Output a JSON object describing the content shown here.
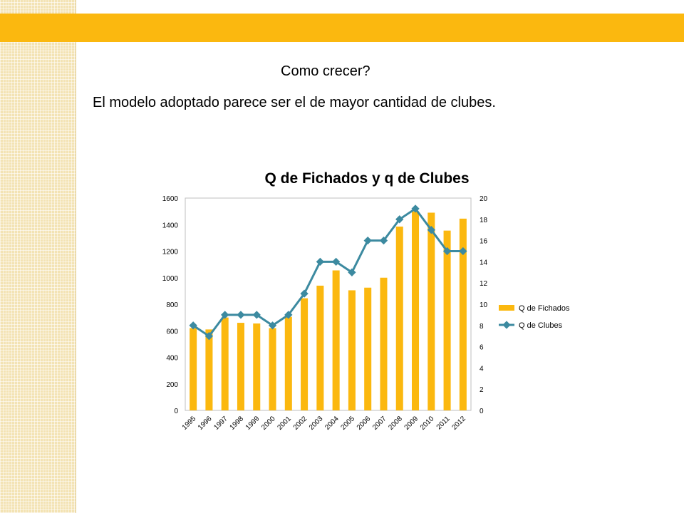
{
  "slide": {
    "line1": "Como crecer?",
    "line2": "El modelo adoptado parece ser el de mayor cantidad de clubes."
  },
  "colors": {
    "banner": "#fbb80f",
    "side_strip": "#f3e3b4",
    "bars": "#fbb80f",
    "line": "#3c8aa0"
  },
  "chart_data": {
    "type": "bar",
    "title": "Q de Fichados y q de Clubes",
    "categories": [
      "1995",
      "1996",
      "1997",
      "1998",
      "1999",
      "2000",
      "2001",
      "2002",
      "2003",
      "2004",
      "2005",
      "2006",
      "2007",
      "2008",
      "2009",
      "2010",
      "2011",
      "2012"
    ],
    "series": [
      {
        "name": "Q de Fichados",
        "type": "bar",
        "axis": "left",
        "values": [
          620,
          610,
          700,
          660,
          655,
          620,
          705,
          845,
          940,
          1055,
          905,
          925,
          1000,
          1385,
          1500,
          1490,
          1355,
          1445
        ]
      },
      {
        "name": "Q de Clubes",
        "type": "line",
        "axis": "right",
        "values": [
          8,
          7,
          9,
          9,
          9,
          8,
          9,
          11,
          14,
          14,
          13,
          16,
          16,
          18,
          19,
          17,
          15,
          15
        ]
      }
    ],
    "y_left": {
      "min": 0,
      "max": 1600,
      "ticks": [
        "0",
        "200",
        "400",
        "600",
        "800",
        "1000",
        "1200",
        "1400",
        "1600"
      ]
    },
    "y_right": {
      "min": 0,
      "max": 20,
      "ticks": [
        "0",
        "2",
        "4",
        "6",
        "8",
        "10",
        "12",
        "14",
        "16",
        "18",
        "20"
      ]
    },
    "legend_position": "right",
    "grid": false
  }
}
